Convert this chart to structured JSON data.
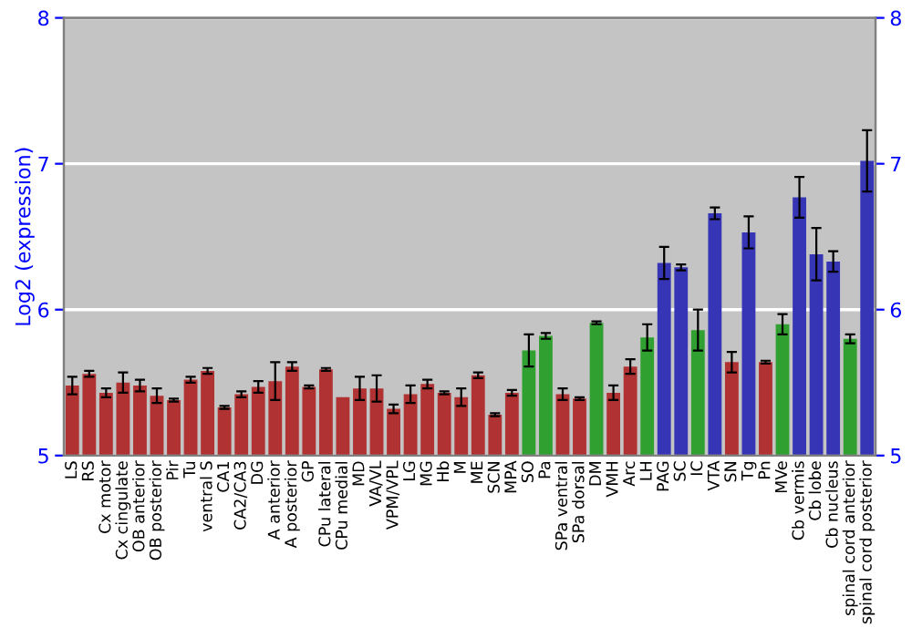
{
  "chart_data": {
    "type": "bar",
    "ylabel": "Log2 (expression)",
    "categories": [
      "LS",
      "RS",
      "Cx motor",
      "Cx cingulate",
      "OB anterior",
      "OB posterior",
      "Pir",
      "Tu",
      "ventral S",
      "CA1",
      "CA2/CA3",
      "DG",
      "A anterior",
      "A posterior",
      "GP",
      "CPu lateral",
      "CPu medial",
      "MD",
      "VA/VL",
      "VPM/VPL",
      "LG",
      "MG",
      "Hb",
      "M",
      "ME",
      "SCN",
      "MPA",
      "SO",
      "Pa",
      "SPa ventral",
      "SPa dorsal",
      "DM",
      "VMH",
      "Arc",
      "LH",
      "PAG",
      "SC",
      "IC",
      "VTA",
      "SN",
      "Tg",
      "Pn",
      "MVe",
      "Cb vermis",
      "Cb lobe",
      "Cb nucleus",
      "spinal cord anterior",
      "spinal cord posterior"
    ],
    "values": [
      5.48,
      5.56,
      5.43,
      5.5,
      5.48,
      5.41,
      5.38,
      5.52,
      5.58,
      5.33,
      5.42,
      5.47,
      5.51,
      5.61,
      5.47,
      5.59,
      5.4,
      5.46,
      5.46,
      5.32,
      5.42,
      5.49,
      5.43,
      5.4,
      5.55,
      5.28,
      5.43,
      5.72,
      5.82,
      5.42,
      5.39,
      5.91,
      5.43,
      5.61,
      5.81,
      6.32,
      6.29,
      5.86,
      6.66,
      5.64,
      6.53,
      5.64,
      5.9,
      6.77,
      6.38,
      6.33,
      5.8,
      7.02
    ],
    "errors": [
      0.06,
      0.02,
      0.03,
      0.07,
      0.04,
      0.05,
      0.01,
      0.02,
      0.02,
      0.01,
      0.02,
      0.04,
      0.13,
      0.03,
      0.01,
      0.01,
      null,
      0.08,
      0.09,
      0.03,
      0.06,
      0.03,
      0.01,
      0.06,
      0.02,
      0.01,
      0.02,
      0.11,
      0.02,
      0.04,
      0.01,
      0.01,
      0.05,
      0.05,
      0.09,
      0.11,
      0.02,
      0.14,
      0.04,
      0.07,
      0.11,
      0.01,
      0.07,
      0.14,
      0.18,
      0.07,
      0.03,
      0.21
    ],
    "colors": [
      "#b03232",
      "#b03232",
      "#b03232",
      "#b03232",
      "#b03232",
      "#b03232",
      "#b03232",
      "#b03232",
      "#b03232",
      "#b03232",
      "#b03232",
      "#b03232",
      "#b03232",
      "#b03232",
      "#b03232",
      "#b03232",
      "#b03232",
      "#b03232",
      "#b03232",
      "#b03232",
      "#b03232",
      "#b03232",
      "#b03232",
      "#b03232",
      "#b03232",
      "#b03232",
      "#b03232",
      "#30a030",
      "#30a030",
      "#b03232",
      "#b03232",
      "#30a030",
      "#b03232",
      "#b03232",
      "#30a030",
      "#3535b5",
      "#3535b5",
      "#30a030",
      "#3535b5",
      "#b03232",
      "#3535b5",
      "#b03232",
      "#30a030",
      "#3535b5",
      "#3535b5",
      "#3535b5",
      "#30a030",
      "#3535b5"
    ],
    "ylim": [
      5,
      8
    ],
    "yticks": [
      5,
      6,
      7,
      8
    ],
    "y2lim": [
      5,
      8
    ],
    "y2ticks": [
      5,
      6,
      7,
      8
    ],
    "grid": "y"
  }
}
